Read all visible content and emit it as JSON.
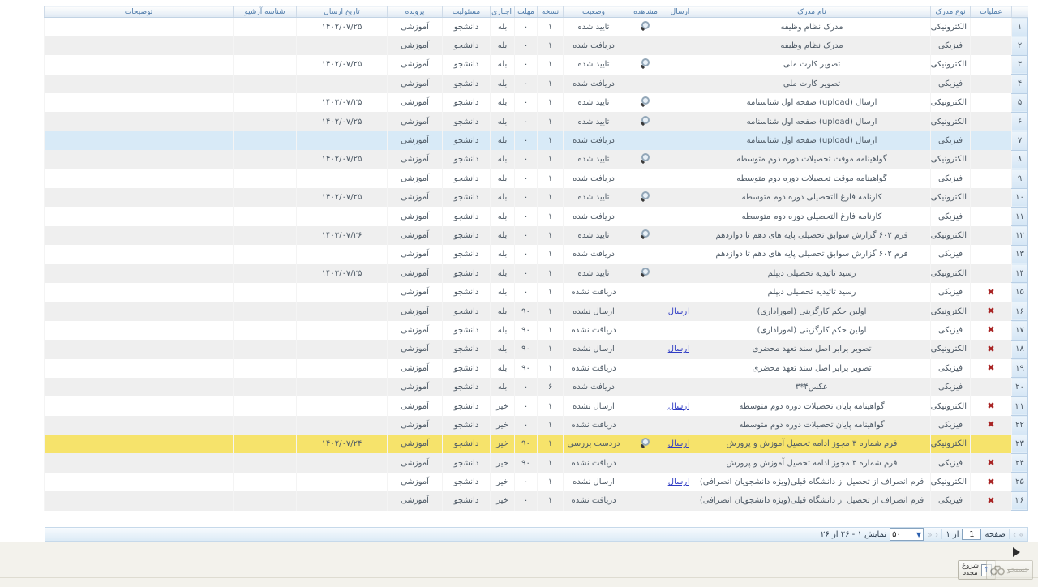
{
  "columns": [
    {
      "key": "rownum",
      "label": ""
    },
    {
      "key": "ops",
      "label": "عملیات"
    },
    {
      "key": "doctype",
      "label": "نوع مدرک"
    },
    {
      "key": "docname",
      "label": "نام مدرک"
    },
    {
      "key": "send",
      "label": "ارسال"
    },
    {
      "key": "view",
      "label": "مشاهده"
    },
    {
      "key": "status",
      "label": "وضعیت"
    },
    {
      "key": "copies",
      "label": "نسخه"
    },
    {
      "key": "deadline",
      "label": "مهلت"
    },
    {
      "key": "required",
      "label": "اجباری"
    },
    {
      "key": "resp",
      "label": "مسئولیت"
    },
    {
      "key": "folder",
      "label": "پرونده"
    },
    {
      "key": "date",
      "label": "تاریخ ارسال"
    },
    {
      "key": "archive",
      "label": "شناسه آرشیو"
    },
    {
      "key": "notes",
      "label": "توضیحات"
    }
  ],
  "labels": {
    "send_link": "ارسال"
  },
  "colors": {
    "required_red": "#cc1111",
    "link_blue": "#2f3cc4",
    "delete_red": "#a82222",
    "highlight_yellow": "#f6e36b",
    "highlight_blue": "#d8eaf7",
    "header_blue": "#4d7aa9"
  },
  "rows": [
    {
      "num": "۱",
      "doc_type": "الکترونیکی",
      "doc_name": "مدرک نظام وظیفه",
      "send_link": false,
      "view": true,
      "status": "تایید شده",
      "copies": "۱",
      "deadline": "۰",
      "required": "بله",
      "responsibility": "دانشجو",
      "folder": "آموزشی",
      "send_date": "۱۴۰۲/۰۷/۲۵",
      "archive_id": "",
      "notes": "",
      "can_delete": false,
      "highlight": ""
    },
    {
      "num": "۲",
      "doc_type": "فیزیکی",
      "doc_name": "مدرک نظام وظیفه",
      "send_link": false,
      "view": false,
      "status": "دریافت شده",
      "copies": "۱",
      "deadline": "۰",
      "required": "بله",
      "responsibility": "دانشجو",
      "folder": "آموزشی",
      "send_date": "",
      "archive_id": "",
      "notes": "",
      "can_delete": false,
      "highlight": ""
    },
    {
      "num": "۳",
      "doc_type": "الکترونیکی",
      "doc_name": "تصویر کارت ملی",
      "send_link": false,
      "view": true,
      "status": "تایید شده",
      "copies": "۱",
      "deadline": "۰",
      "required": "بله",
      "responsibility": "دانشجو",
      "folder": "آموزشی",
      "send_date": "۱۴۰۲/۰۷/۲۵",
      "archive_id": "",
      "notes": "",
      "can_delete": false,
      "highlight": ""
    },
    {
      "num": "۴",
      "doc_type": "فیزیکی",
      "doc_name": "تصویر کارت ملی",
      "send_link": false,
      "view": false,
      "status": "دریافت شده",
      "copies": "۱",
      "deadline": "۰",
      "required": "بله",
      "responsibility": "دانشجو",
      "folder": "آموزشی",
      "send_date": "",
      "archive_id": "",
      "notes": "",
      "can_delete": false,
      "highlight": ""
    },
    {
      "num": "۵",
      "doc_type": "الکترونیکی",
      "doc_name": "ارسال (upload) صفحه اول شناسنامه",
      "send_link": false,
      "view": true,
      "status": "تایید شده",
      "copies": "۱",
      "deadline": "۰",
      "required": "بله",
      "responsibility": "دانشجو",
      "folder": "آموزشی",
      "send_date": "۱۴۰۲/۰۷/۲۵",
      "archive_id": "",
      "notes": "",
      "can_delete": false,
      "highlight": ""
    },
    {
      "num": "۶",
      "doc_type": "الکترونیکی",
      "doc_name": "ارسال (upload) صفحه اول شناسنامه",
      "send_link": false,
      "view": true,
      "status": "تایید شده",
      "copies": "۱",
      "deadline": "۰",
      "required": "بله",
      "responsibility": "دانشجو",
      "folder": "آموزشی",
      "send_date": "۱۴۰۲/۰۷/۲۵",
      "archive_id": "",
      "notes": "",
      "can_delete": false,
      "highlight": ""
    },
    {
      "num": "۷",
      "doc_type": "فیزیکی",
      "doc_name": "ارسال (upload) صفحه اول شناسنامه",
      "send_link": false,
      "view": false,
      "status": "دریافت شده",
      "copies": "۱",
      "deadline": "۰",
      "required": "بله",
      "responsibility": "دانشجو",
      "folder": "آموزشی",
      "send_date": "",
      "archive_id": "",
      "notes": "",
      "can_delete": false,
      "highlight": "blue"
    },
    {
      "num": "۸",
      "doc_type": "الکترونیکی",
      "doc_name": "گواهینامه موقت تحصیلات دوره دوم متوسطه",
      "send_link": false,
      "view": true,
      "status": "تایید شده",
      "copies": "۱",
      "deadline": "۰",
      "required": "بله",
      "responsibility": "دانشجو",
      "folder": "آموزشی",
      "send_date": "۱۴۰۲/۰۷/۲۵",
      "archive_id": "",
      "notes": "",
      "can_delete": false,
      "highlight": ""
    },
    {
      "num": "۹",
      "doc_type": "فیزیکی",
      "doc_name": "گواهینامه موقت تحصیلات دوره دوم متوسطه",
      "send_link": false,
      "view": false,
      "status": "دریافت شده",
      "copies": "۱",
      "deadline": "۰",
      "required": "بله",
      "responsibility": "دانشجو",
      "folder": "آموزشی",
      "send_date": "",
      "archive_id": "",
      "notes": "",
      "can_delete": false,
      "highlight": ""
    },
    {
      "num": "۱۰",
      "doc_type": "الکترونیکی",
      "doc_name": "کارنامه فارغ التحصیلی دوره دوم متوسطه",
      "send_link": false,
      "view": true,
      "status": "تایید شده",
      "copies": "۱",
      "deadline": "۰",
      "required": "بله",
      "responsibility": "دانشجو",
      "folder": "آموزشی",
      "send_date": "۱۴۰۲/۰۷/۲۵",
      "archive_id": "",
      "notes": "",
      "can_delete": false,
      "highlight": ""
    },
    {
      "num": "۱۱",
      "doc_type": "فیزیکی",
      "doc_name": "کارنامه فارغ التحصیلی دوره دوم متوسطه",
      "send_link": false,
      "view": false,
      "status": "دریافت شده",
      "copies": "۱",
      "deadline": "۰",
      "required": "بله",
      "responsibility": "دانشجو",
      "folder": "آموزشی",
      "send_date": "",
      "archive_id": "",
      "notes": "",
      "can_delete": false,
      "highlight": ""
    },
    {
      "num": "۱۲",
      "doc_type": "الکترونیکی",
      "doc_name": "فرم ۶۰۲ گزارش سوابق تحصیلی پایه های دهم تا دوازدهم",
      "send_link": false,
      "view": true,
      "status": "تایید شده",
      "copies": "۱",
      "deadline": "۰",
      "required": "بله",
      "responsibility": "دانشجو",
      "folder": "آموزشی",
      "send_date": "۱۴۰۲/۰۷/۲۶",
      "archive_id": "",
      "notes": "",
      "can_delete": false,
      "highlight": ""
    },
    {
      "num": "۱۳",
      "doc_type": "فیزیکی",
      "doc_name": "فرم ۶۰۲ گزارش سوابق تحصیلی پایه های دهم تا دوازدهم",
      "send_link": false,
      "view": false,
      "status": "دریافت شده",
      "copies": "۱",
      "deadline": "۰",
      "required": "بله",
      "responsibility": "دانشجو",
      "folder": "آموزشی",
      "send_date": "",
      "archive_id": "",
      "notes": "",
      "can_delete": false,
      "highlight": ""
    },
    {
      "num": "۱۴",
      "doc_type": "الکترونیکی",
      "doc_name": "رسید تائیدیه تحصیلی دیپلم",
      "send_link": false,
      "view": true,
      "status": "تایید شده",
      "copies": "۱",
      "deadline": "۰",
      "required": "بله",
      "responsibility": "دانشجو",
      "folder": "آموزشی",
      "send_date": "۱۴۰۲/۰۷/۲۵",
      "archive_id": "",
      "notes": "",
      "can_delete": false,
      "highlight": ""
    },
    {
      "num": "۱۵",
      "doc_type": "فیزیکی",
      "doc_name": "رسید تائیدیه تحصیلی دیپلم",
      "send_link": false,
      "view": false,
      "status": "دریافت نشده",
      "copies": "۱",
      "deadline": "۰",
      "required": "بله",
      "responsibility": "دانشجو",
      "folder": "آموزشی",
      "send_date": "",
      "archive_id": "",
      "notes": "",
      "can_delete": true,
      "highlight": ""
    },
    {
      "num": "۱۶",
      "doc_type": "الکترونیکی",
      "doc_name": "اولین حکم کارگزینی (اموراداری)",
      "send_link": true,
      "view": false,
      "status": "ارسال نشده",
      "copies": "۱",
      "deadline": "۹۰",
      "required": "بله",
      "responsibility": "دانشجو",
      "folder": "آموزشی",
      "send_date": "",
      "archive_id": "",
      "notes": "",
      "can_delete": true,
      "highlight": ""
    },
    {
      "num": "۱۷",
      "doc_type": "فیزیکی",
      "doc_name": "اولین حکم کارگزینی (اموراداری)",
      "send_link": false,
      "view": false,
      "status": "دریافت نشده",
      "copies": "۱",
      "deadline": "۹۰",
      "required": "بله",
      "responsibility": "دانشجو",
      "folder": "آموزشی",
      "send_date": "",
      "archive_id": "",
      "notes": "",
      "can_delete": true,
      "highlight": ""
    },
    {
      "num": "۱۸",
      "doc_type": "الکترونیکی",
      "doc_name": "تصویر برابر اصل سند تعهد محضری",
      "send_link": true,
      "view": false,
      "status": "ارسال نشده",
      "copies": "۱",
      "deadline": "۹۰",
      "required": "بله",
      "responsibility": "دانشجو",
      "folder": "آموزشی",
      "send_date": "",
      "archive_id": "",
      "notes": "",
      "can_delete": true,
      "highlight": ""
    },
    {
      "num": "۱۹",
      "doc_type": "فیزیکی",
      "doc_name": "تصویر برابر اصل سند تعهد محضری",
      "send_link": false,
      "view": false,
      "status": "دریافت نشده",
      "copies": "۱",
      "deadline": "۹۰",
      "required": "بله",
      "responsibility": "دانشجو",
      "folder": "آموزشی",
      "send_date": "",
      "archive_id": "",
      "notes": "",
      "can_delete": true,
      "highlight": ""
    },
    {
      "num": "۲۰",
      "doc_type": "فیزیکی",
      "doc_name": "عکس۴*۳",
      "send_link": false,
      "view": false,
      "status": "دریافت شده",
      "copies": "۶",
      "deadline": "۰",
      "required": "بله",
      "responsibility": "دانشجو",
      "folder": "آموزشی",
      "send_date": "",
      "archive_id": "",
      "notes": "",
      "can_delete": false,
      "highlight": ""
    },
    {
      "num": "۲۱",
      "doc_type": "الکترونیکی",
      "doc_name": "گواهینامه پایان تحصیلات دوره دوم متوسطه",
      "send_link": true,
      "view": false,
      "status": "ارسال نشده",
      "copies": "۱",
      "deadline": "۰",
      "required": "خیر",
      "responsibility": "دانشجو",
      "folder": "آموزشی",
      "send_date": "",
      "archive_id": "",
      "notes": "",
      "can_delete": true,
      "highlight": ""
    },
    {
      "num": "۲۲",
      "doc_type": "فیزیکی",
      "doc_name": "گواهینامه پایان تحصیلات دوره دوم متوسطه",
      "send_link": false,
      "view": false,
      "status": "دریافت نشده",
      "copies": "۱",
      "deadline": "۰",
      "required": "خیر",
      "responsibility": "دانشجو",
      "folder": "آموزشی",
      "send_date": "",
      "archive_id": "",
      "notes": "",
      "can_delete": true,
      "highlight": ""
    },
    {
      "num": "۲۳",
      "doc_type": "الکترونیکی",
      "doc_name": "فرم شماره ۳ مجوز ادامه تحصیل آموزش و پرورش",
      "send_link": true,
      "view": true,
      "status": "دردست بررسی",
      "copies": "۱",
      "deadline": "۹۰",
      "required": "خیر",
      "responsibility": "دانشجو",
      "folder": "آموزشی",
      "send_date": "۱۴۰۲/۰۷/۲۴",
      "archive_id": "",
      "notes": "",
      "can_delete": false,
      "highlight": "yellow"
    },
    {
      "num": "۲۴",
      "doc_type": "فیزیکی",
      "doc_name": "فرم شماره ۳ مجوز ادامه تحصیل آموزش و پرورش",
      "send_link": false,
      "view": false,
      "status": "دریافت نشده",
      "copies": "۱",
      "deadline": "۹۰",
      "required": "خیر",
      "responsibility": "دانشجو",
      "folder": "آموزشی",
      "send_date": "",
      "archive_id": "",
      "notes": "",
      "can_delete": true,
      "highlight": ""
    },
    {
      "num": "۲۵",
      "doc_type": "الکترونیکی",
      "doc_name": "فرم انصراف از تحصیل از دانشگاه قبلی(ویژه دانشجویان انصرافی)",
      "send_link": true,
      "view": false,
      "status": "ارسال نشده",
      "copies": "۱",
      "deadline": "۰",
      "required": "خیر",
      "responsibility": "دانشجو",
      "folder": "آموزشی",
      "send_date": "",
      "archive_id": "",
      "notes": "",
      "can_delete": true,
      "highlight": ""
    },
    {
      "num": "۲۶",
      "doc_type": "فیزیکی",
      "doc_name": "فرم انصراف از تحصیل از دانشگاه قبلی(ویژه دانشجویان انصرافی)",
      "send_link": false,
      "view": false,
      "status": "دریافت نشده",
      "copies": "۱",
      "deadline": "۰",
      "required": "خیر",
      "responsibility": "دانشجو",
      "folder": "آموزشی",
      "send_date": "",
      "archive_id": "",
      "notes": "",
      "can_delete": true,
      "highlight": ""
    }
  ],
  "pagination": {
    "page_label": "صفحه",
    "page_value": "1",
    "of_label": "از ۱",
    "page_size": "۵۰",
    "showing": "نمایش ۱ - ۲۶ از ۲۶"
  },
  "footer": {
    "search_label": "جستجو",
    "restart_label": "شروع\nمجدد"
  }
}
